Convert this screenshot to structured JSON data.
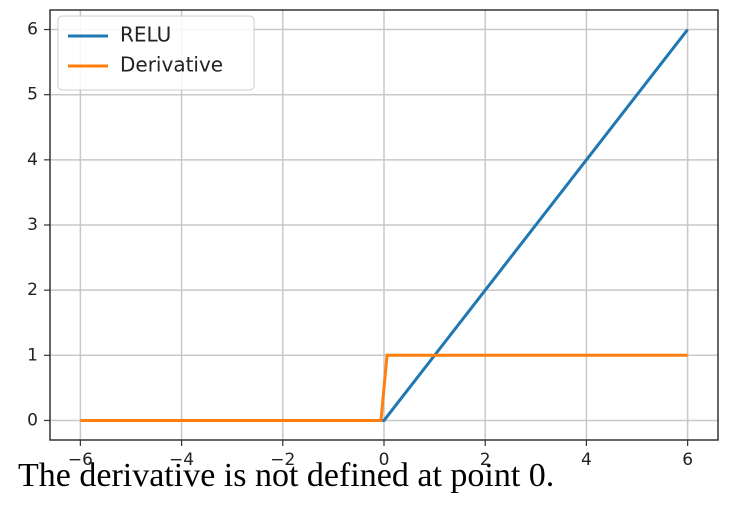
{
  "chart_data": {
    "type": "line",
    "caption": "The derivative is not defined at point 0.",
    "series": [
      {
        "name": "RELU",
        "color": "#1f77b4",
        "x": [
          -6,
          0,
          6
        ],
        "values": [
          0,
          0,
          6
        ]
      },
      {
        "name": "Derivative",
        "color": "#ff7f0e",
        "x": [
          -6,
          -0.06,
          0.06,
          6
        ],
        "values": [
          0,
          0,
          1,
          1
        ]
      }
    ],
    "xlim": [
      -6.6,
      6.6
    ],
    "ylim": [
      -0.3,
      6.3
    ],
    "xticks": [
      {
        "value": -6,
        "label": "−6"
      },
      {
        "value": -4,
        "label": "−4"
      },
      {
        "value": -2,
        "label": "−2"
      },
      0,
      2,
      4,
      6
    ],
    "yticks": [
      0,
      1,
      2,
      3,
      4,
      5,
      6
    ],
    "grid": true,
    "legend": "upper left"
  }
}
